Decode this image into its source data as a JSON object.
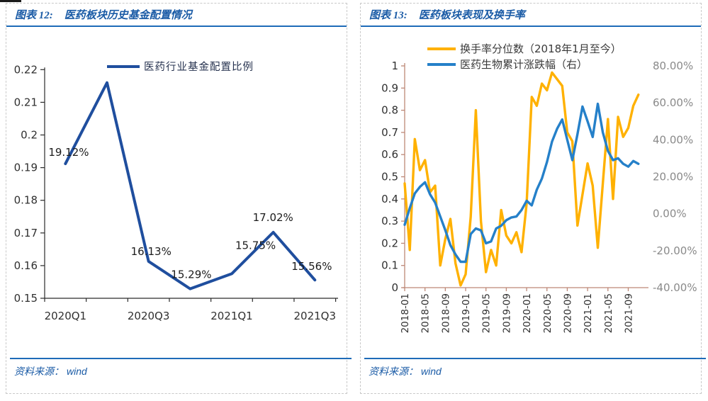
{
  "colors": {
    "caption_blue": "#1a5ba6",
    "separator_blue": "#1e6bb8",
    "chart1_line": "#1f4e9e",
    "orange_series": "#ffb100",
    "blue_series": "#2580c9",
    "axis_black": "#2b2b2b",
    "axis_brown": "#bd8877",
    "label_dark": "#303030",
    "label_gray": "#8a8a8a"
  },
  "panels": {
    "left": {
      "caption_label": "图表 12:",
      "caption_title": "医药板块历史基金配置情况",
      "source_label": "资料来源：",
      "source_value": "wind"
    },
    "right": {
      "caption_label": "图表 13:",
      "caption_title": "医药板块表现及换手率",
      "source_label": "资料来源：",
      "source_value": "wind"
    }
  },
  "chart_data": [
    {
      "type": "line",
      "title": "医药板块历史基金配置情况",
      "legend": [
        "医药行业基金配置比例"
      ],
      "legend_position": "top",
      "grid": false,
      "categories": [
        "2020Q1",
        "2020Q2",
        "2020Q3",
        "2020Q4",
        "2021Q1",
        "2021Q2",
        "2021Q3"
      ],
      "values": [
        0.1912,
        0.216,
        0.1613,
        0.1529,
        0.1575,
        0.1702,
        0.1556
      ],
      "point_labels": [
        "19.12%",
        "",
        "16.13%",
        "15.29%",
        "15.75%",
        "17.02%",
        "15.56%"
      ],
      "x_tick_labels": [
        "2020Q1",
        "2020Q3",
        "2021Q1",
        "2021Q3"
      ],
      "y_tick_labels": [
        "0.15",
        "0.16",
        "0.17",
        "0.18",
        "0.19",
        "0.2",
        "0.21",
        "0.22"
      ],
      "ylim": [
        0.15,
        0.22
      ],
      "xlabel": "",
      "ylabel": ""
    },
    {
      "type": "line",
      "title": "医药板块表现及换手率",
      "legend_position": "top",
      "grid": false,
      "x": [
        "2018-01",
        "2018-02",
        "2018-03",
        "2018-04",
        "2018-05",
        "2018-06",
        "2018-07",
        "2018-08",
        "2018-09",
        "2018-10",
        "2018-11",
        "2018-12",
        "2019-01",
        "2019-02",
        "2019-03",
        "2019-04",
        "2019-05",
        "2019-06",
        "2019-07",
        "2019-08",
        "2019-09",
        "2019-10",
        "2019-11",
        "2019-12",
        "2020-01",
        "2020-02",
        "2020-03",
        "2020-04",
        "2020-05",
        "2020-06",
        "2020-07",
        "2020-08",
        "2020-09",
        "2020-10",
        "2020-11",
        "2020-12",
        "2021-01",
        "2021-02",
        "2021-03",
        "2021-04",
        "2021-05",
        "2021-06",
        "2021-07",
        "2021-08",
        "2021-09",
        "2021-10",
        "2021-11"
      ],
      "x_tick_labels": [
        "2018-01",
        "2018-05",
        "2018-09",
        "2019-01",
        "2019-05",
        "2019-09",
        "2020-01",
        "2020-05",
        "2020-09",
        "2021-01",
        "2021-05",
        "2021-09"
      ],
      "series": [
        {
          "name": "换手率分位数（2018年1月至今）",
          "axis": "left",
          "values": [
            0.47,
            0.17,
            0.67,
            0.53,
            0.575,
            0.43,
            0.46,
            0.1,
            0.22,
            0.31,
            0.11,
            0.01,
            0.06,
            0.32,
            0.8,
            0.3,
            0.07,
            0.17,
            0.1,
            0.35,
            0.235,
            0.2,
            0.25,
            0.16,
            0.38,
            0.86,
            0.82,
            0.92,
            0.89,
            0.97,
            0.94,
            0.91,
            0.7,
            0.66,
            0.28,
            0.42,
            0.56,
            0.46,
            0.18,
            0.47,
            0.76,
            0.4,
            0.77,
            0.68,
            0.72,
            0.82,
            0.87
          ]
        },
        {
          "name": "医药生物累计涨跌幅（右）",
          "axis": "right",
          "values_pct": [
            -6,
            3,
            11,
            14.5,
            17,
            10.5,
            6,
            -1.5,
            -9,
            -17,
            -22,
            -26,
            -26,
            -11,
            -8,
            -9,
            -16,
            -15,
            -8,
            -6.5,
            -3.5,
            -2,
            -1.5,
            2,
            7,
            4.5,
            13,
            19,
            28,
            39,
            46,
            51,
            40,
            29,
            43,
            58,
            50,
            41.5,
            59.5,
            44,
            34,
            29,
            30,
            27,
            25.5,
            28.5,
            27
          ]
        }
      ],
      "left_ylim": [
        0,
        1
      ],
      "left_tick_labels": [
        "0",
        "0.1",
        "0.2",
        "0.3",
        "0.4",
        "0.5",
        "0.6",
        "0.7",
        "0.8",
        "0.9",
        "1"
      ],
      "right_ylim": [
        -40,
        80
      ],
      "right_tick_labels": [
        "-40.00%",
        "-20.00%",
        "0.00%",
        "20.00%",
        "40.00%",
        "60.00%",
        "80.00%"
      ]
    }
  ]
}
